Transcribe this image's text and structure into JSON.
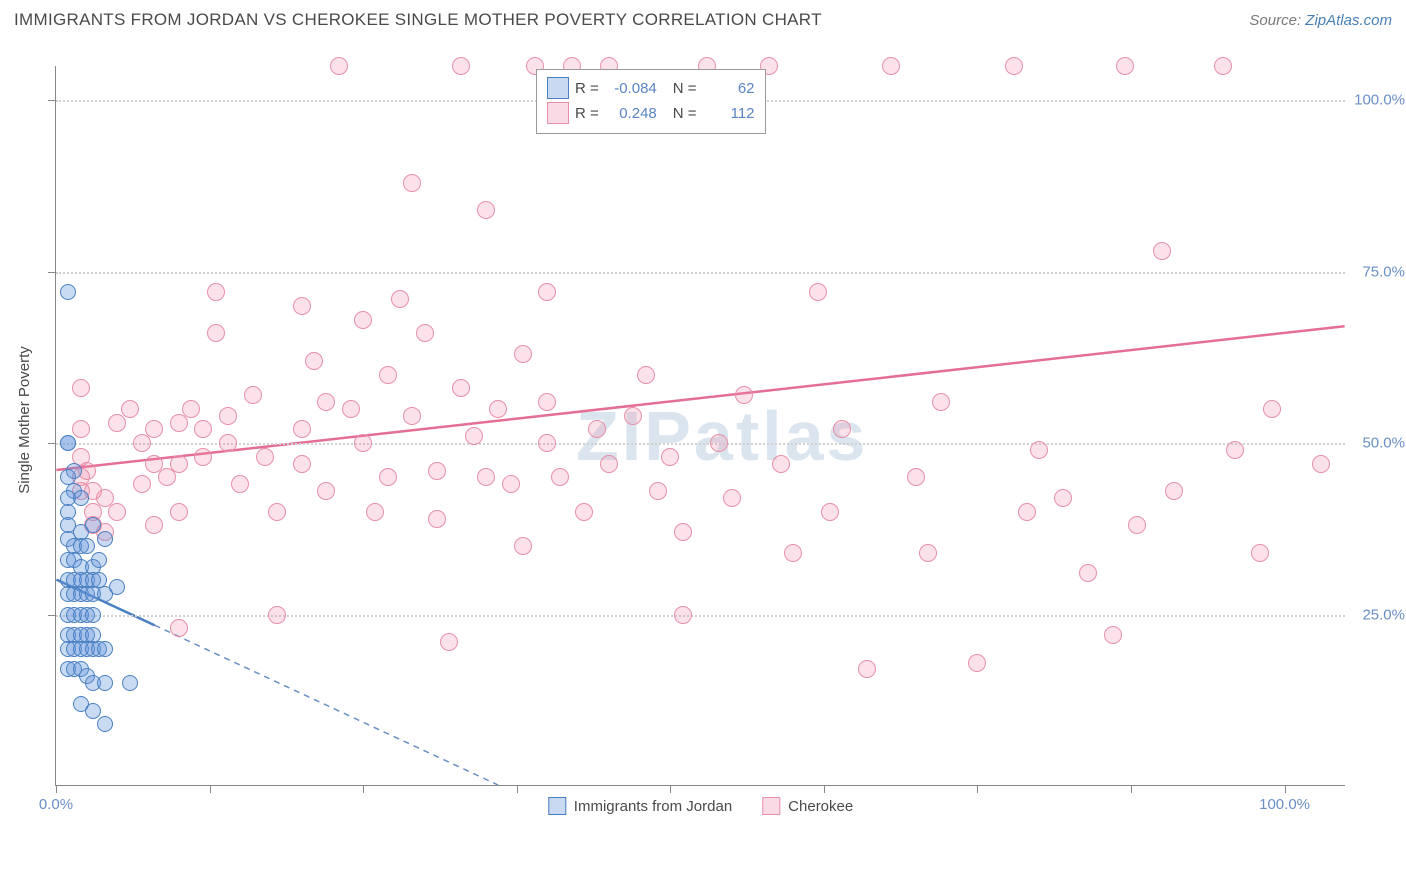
{
  "title": "IMMIGRANTS FROM JORDAN VS CHEROKEE SINGLE MOTHER POVERTY CORRELATION CHART",
  "source_prefix": "Source: ",
  "source_link": "ZipAtlas.com",
  "ylabel": "Single Mother Poverty",
  "watermark": "ZIPatlas",
  "chart": {
    "type": "scatter",
    "xlim": [
      0,
      105
    ],
    "ylim": [
      0,
      105
    ],
    "x_ticks": [
      0,
      12.5,
      25,
      37.5,
      50,
      62.5,
      75,
      87.5,
      100
    ],
    "y_ticks": [
      0,
      25,
      50,
      75,
      100
    ],
    "y_tick_labels": [
      "",
      "25.0%",
      "50.0%",
      "75.0%",
      "100.0%"
    ],
    "x_axis_endpoint_labels": {
      "left": "0.0%",
      "right": "100.0%"
    },
    "background_color": "#ffffff",
    "grid_color": "#d0d0d0",
    "axis_color": "#888888",
    "tick_label_color": "#6a8fc5",
    "label_fontsize": 15,
    "title_fontsize": 17
  },
  "series": {
    "jordan": {
      "label": "Immigrants from Jordan",
      "color": "#4a80c0",
      "fill": "rgba(100,150,220,0.35)",
      "marker_size": 16,
      "R": "-0.084",
      "N": "62",
      "trend": {
        "x1": 0,
        "y1": 30,
        "x2": 36,
        "y2": 0,
        "solid_until_x": 8
      },
      "points": [
        [
          1,
          72
        ],
        [
          1,
          50
        ],
        [
          1,
          50
        ],
        [
          1.5,
          46
        ],
        [
          1,
          45
        ],
        [
          1.5,
          43
        ],
        [
          1,
          42
        ],
        [
          2,
          42
        ],
        [
          1,
          40
        ],
        [
          1,
          38
        ],
        [
          2,
          37
        ],
        [
          3,
          38
        ],
        [
          1,
          36
        ],
        [
          1.5,
          35
        ],
        [
          2,
          35
        ],
        [
          2.5,
          35
        ],
        [
          1,
          33
        ],
        [
          1.5,
          33
        ],
        [
          2,
          32
        ],
        [
          3,
          32
        ],
        [
          3.5,
          33
        ],
        [
          4,
          36
        ],
        [
          1,
          30
        ],
        [
          1.5,
          30
        ],
        [
          2,
          30
        ],
        [
          2.5,
          30
        ],
        [
          3,
          30
        ],
        [
          3.5,
          30
        ],
        [
          1,
          28
        ],
        [
          1.5,
          28
        ],
        [
          2,
          28
        ],
        [
          2.5,
          28
        ],
        [
          3,
          28
        ],
        [
          4,
          28
        ],
        [
          5,
          29
        ],
        [
          1,
          25
        ],
        [
          1.5,
          25
        ],
        [
          2,
          25
        ],
        [
          2.5,
          25
        ],
        [
          3,
          25
        ],
        [
          1,
          22
        ],
        [
          1.5,
          22
        ],
        [
          2,
          22
        ],
        [
          2.5,
          22
        ],
        [
          3,
          22
        ],
        [
          1,
          20
        ],
        [
          1.5,
          20
        ],
        [
          2,
          20
        ],
        [
          2.5,
          20
        ],
        [
          3,
          20
        ],
        [
          3.5,
          20
        ],
        [
          4,
          20
        ],
        [
          1,
          17
        ],
        [
          1.5,
          17
        ],
        [
          2,
          17
        ],
        [
          2.5,
          16
        ],
        [
          3,
          15
        ],
        [
          4,
          15
        ],
        [
          6,
          15
        ],
        [
          2,
          12
        ],
        [
          3,
          11
        ],
        [
          4,
          9
        ]
      ]
    },
    "cherokee": {
      "label": "Cherokee",
      "color": "#e46e94",
      "fill": "rgba(240,140,170,0.25)",
      "marker_size": 18,
      "R": "0.248",
      "N": "112",
      "trend": {
        "x1": 0,
        "y1": 46,
        "x2": 105,
        "y2": 67,
        "solid_until_x": 105
      },
      "points": [
        [
          2,
          58
        ],
        [
          2,
          52
        ],
        [
          2,
          48
        ],
        [
          2,
          45
        ],
        [
          2,
          43
        ],
        [
          2.5,
          46
        ],
        [
          3,
          43
        ],
        [
          3,
          40
        ],
        [
          3,
          38
        ],
        [
          4,
          42
        ],
        [
          4,
          37
        ],
        [
          5,
          53
        ],
        [
          5,
          40
        ],
        [
          6,
          55
        ],
        [
          7,
          50
        ],
        [
          7,
          44
        ],
        [
          8,
          52
        ],
        [
          8,
          47
        ],
        [
          8,
          38
        ],
        [
          9,
          45
        ],
        [
          10,
          53
        ],
        [
          10,
          47
        ],
        [
          10,
          40
        ],
        [
          10,
          23
        ],
        [
          11,
          55
        ],
        [
          12,
          52
        ],
        [
          12,
          48
        ],
        [
          13,
          72
        ],
        [
          13,
          66
        ],
        [
          14,
          54
        ],
        [
          14,
          50
        ],
        [
          15,
          44
        ],
        [
          16,
          57
        ],
        [
          17,
          48
        ],
        [
          18,
          40
        ],
        [
          18,
          25
        ],
        [
          20,
          70
        ],
        [
          20,
          52
        ],
        [
          20,
          47
        ],
        [
          21,
          62
        ],
        [
          22,
          56
        ],
        [
          22,
          43
        ],
        [
          23,
          105
        ],
        [
          24,
          55
        ],
        [
          25,
          68
        ],
        [
          25,
          50
        ],
        [
          26,
          40
        ],
        [
          27,
          60
        ],
        [
          27,
          45
        ],
        [
          28,
          71
        ],
        [
          29,
          88
        ],
        [
          29,
          54
        ],
        [
          30,
          66
        ],
        [
          31,
          46
        ],
        [
          31,
          39
        ],
        [
          32,
          21
        ],
        [
          33,
          58
        ],
        [
          33,
          105
        ],
        [
          34,
          51
        ],
        [
          35,
          45
        ],
        [
          35,
          84
        ],
        [
          36,
          55
        ],
        [
          37,
          44
        ],
        [
          38,
          63
        ],
        [
          38,
          35
        ],
        [
          39,
          105
        ],
        [
          40,
          56
        ],
        [
          40,
          50
        ],
        [
          40,
          72
        ],
        [
          41,
          45
        ],
        [
          42,
          105
        ],
        [
          43,
          40
        ],
        [
          44,
          52
        ],
        [
          45,
          47
        ],
        [
          45,
          105
        ],
        [
          47,
          54
        ],
        [
          48,
          60
        ],
        [
          49,
          43
        ],
        [
          50,
          48
        ],
        [
          51,
          37
        ],
        [
          51,
          25
        ],
        [
          53,
          105
        ],
        [
          54,
          50
        ],
        [
          55,
          42
        ],
        [
          56,
          57
        ],
        [
          58,
          105
        ],
        [
          59,
          47
        ],
        [
          60,
          34
        ],
        [
          62,
          72
        ],
        [
          63,
          40
        ],
        [
          64,
          52
        ],
        [
          66,
          17
        ],
        [
          68,
          105
        ],
        [
          70,
          45
        ],
        [
          71,
          34
        ],
        [
          72,
          56
        ],
        [
          75,
          18
        ],
        [
          78,
          105
        ],
        [
          79,
          40
        ],
        [
          80,
          49
        ],
        [
          82,
          42
        ],
        [
          84,
          31
        ],
        [
          86,
          22
        ],
        [
          87,
          105
        ],
        [
          88,
          38
        ],
        [
          90,
          78
        ],
        [
          91,
          43
        ],
        [
          95,
          105
        ],
        [
          96,
          49
        ],
        [
          98,
          34
        ],
        [
          99,
          55
        ],
        [
          103,
          47
        ]
      ]
    }
  },
  "legend_top": {
    "rows": [
      {
        "swatch": "blue",
        "R_label": "R =",
        "R": "-0.084",
        "N_label": "N =",
        "N": "62"
      },
      {
        "swatch": "pink",
        "R_label": "R =",
        "R": "0.248",
        "N_label": "N =",
        "N": "112"
      }
    ]
  },
  "legend_bottom": [
    {
      "swatch": "blue",
      "label": "Immigrants from Jordan"
    },
    {
      "swatch": "pink",
      "label": "Cherokee"
    }
  ]
}
